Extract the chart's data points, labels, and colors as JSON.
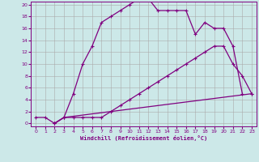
{
  "line1_x": [
    0,
    1,
    2,
    3,
    4,
    5,
    6,
    7,
    8,
    9,
    10,
    11,
    12,
    13,
    14,
    15,
    16,
    17,
    18,
    19,
    20,
    21,
    22
  ],
  "line1_y": [
    1,
    1,
    0,
    1,
    5,
    10,
    13,
    17,
    18,
    19,
    20,
    21,
    21,
    19,
    19,
    19,
    19,
    15,
    17,
    16,
    16,
    13,
    5
  ],
  "line2_x": [
    2,
    3,
    4,
    5,
    6,
    7,
    8,
    9,
    10,
    11,
    12,
    13,
    14,
    15,
    16,
    17,
    18,
    19,
    20,
    21,
    22,
    23
  ],
  "line2_y": [
    0,
    1,
    1,
    1,
    1,
    1,
    2,
    3,
    4,
    5,
    6,
    7,
    8,
    9,
    10,
    11,
    12,
    13,
    13,
    10,
    8,
    5
  ],
  "line3_x": [
    2,
    3,
    23
  ],
  "line3_y": [
    0,
    1,
    5
  ],
  "line_color": "#800080",
  "bg_color": "#cce8e8",
  "grid_color": "#aaaaaa",
  "xlabel": "Windchill (Refroidissement éolien,°C)",
  "xlim_min": -0.5,
  "xlim_max": 23.5,
  "ylim_min": -0.5,
  "ylim_max": 20.5,
  "xticks": [
    0,
    1,
    2,
    3,
    4,
    5,
    6,
    7,
    8,
    9,
    10,
    11,
    12,
    13,
    14,
    15,
    16,
    17,
    18,
    19,
    20,
    21,
    22,
    23
  ],
  "yticks": [
    0,
    2,
    4,
    6,
    8,
    10,
    12,
    14,
    16,
    18,
    20
  ],
  "markersize": 3,
  "linewidth": 0.9
}
